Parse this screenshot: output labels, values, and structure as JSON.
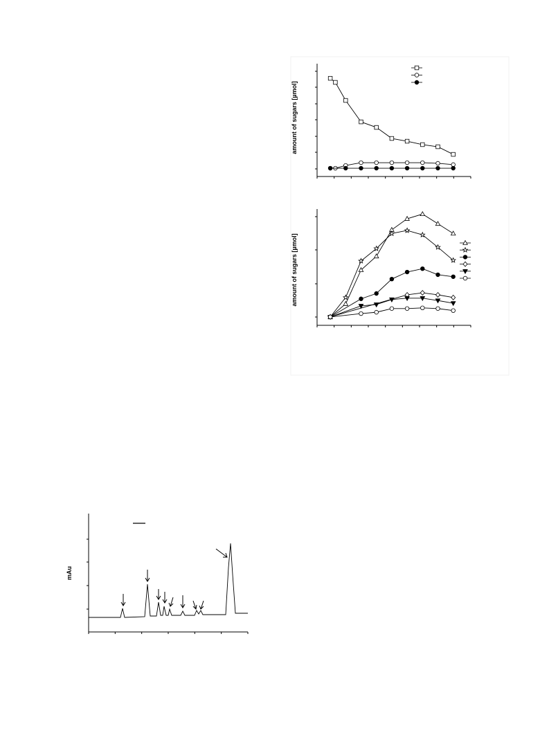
{
  "chart_data": [
    {
      "type": "line",
      "y_label": "amount of sugars [µmol]",
      "xlim": [
        -0.86,
        9.14
      ],
      "ylim": [
        -0.47,
        6.47
      ],
      "legend": "top-right",
      "series": [
        {
          "marker": "square",
          "color": "#000000",
          "x": [
            0,
            0.33,
            1,
            2,
            3,
            4,
            5,
            6,
            7,
            8
          ],
          "values": [
            5.57,
            5.32,
            4.21,
            2.89,
            2.55,
            1.87,
            1.7,
            1.49,
            1.36,
            0.89
          ]
        },
        {
          "marker": "circle",
          "color": "#000000",
          "x": [
            0,
            0.33,
            1,
            2,
            3,
            4,
            5,
            6,
            7,
            8
          ],
          "values": [
            0.04,
            0.04,
            0.21,
            0.38,
            0.38,
            0.38,
            0.38,
            0.38,
            0.34,
            0.26
          ]
        },
        {
          "marker": "circle-filled",
          "color": "#000000",
          "x": [
            0,
            1,
            2,
            3,
            4,
            5,
            6,
            7,
            8
          ],
          "values": [
            0.04,
            0.04,
            0.04,
            0.04,
            0.04,
            0.04,
            0.04,
            0.04,
            0.04
          ]
        }
      ]
    },
    {
      "type": "line",
      "y_label": "amount of sugars [µmol]",
      "xlim": [
        -0.86,
        9.14
      ],
      "ylim": [
        -0.25,
        3.22
      ],
      "legend": "right",
      "series": [
        {
          "marker": "triangle",
          "color": "#000000",
          "x": [
            0,
            1,
            2,
            3,
            4,
            5,
            6,
            7,
            8
          ],
          "values": [
            0,
            0.39,
            1.4,
            1.81,
            2.6,
            2.93,
            3.07,
            2.78,
            2.49
          ]
        },
        {
          "marker": "star",
          "color": "#000000",
          "x": [
            0,
            1,
            2,
            3,
            4,
            5,
            6,
            7,
            8
          ],
          "values": [
            0,
            0.58,
            1.67,
            2.04,
            2.49,
            2.58,
            2.45,
            2.08,
            1.69
          ]
        },
        {
          "marker": "circle-filled",
          "color": "#000000",
          "x": [
            0,
            2,
            3,
            4,
            5,
            6,
            7,
            8
          ],
          "values": [
            0,
            0.54,
            0.7,
            1.13,
            1.34,
            1.44,
            1.26,
            1.2
          ]
        },
        {
          "marker": "diamond",
          "color": "#000000",
          "x": [
            0,
            5,
            6,
            7,
            8
          ],
          "values": [
            0,
            0.66,
            0.72,
            0.66,
            0.58
          ]
        },
        {
          "marker": "triangle-down-filled",
          "color": "#000000",
          "x": [
            0,
            2,
            3,
            4,
            5,
            6,
            7,
            8
          ],
          "values": [
            0,
            0.33,
            0.37,
            0.52,
            0.56,
            0.56,
            0.49,
            0.41
          ]
        },
        {
          "marker": "circle",
          "color": "#000000",
          "x": [
            0,
            2,
            3,
            4,
            5,
            6,
            7,
            8
          ],
          "values": [
            0,
            0.1,
            0.14,
            0.25,
            0.25,
            0.27,
            0.25,
            0.19
          ]
        }
      ]
    },
    {
      "type": "line",
      "y_label": "mAu",
      "xlim": [
        0,
        23
      ],
      "ylim": [
        0,
        17.1
      ],
      "series": [
        {
          "marker": "none",
          "color": "#000000",
          "x": [
            0,
            4.6,
            4.9,
            5.2,
            8.1,
            8.5,
            8.9,
            9.8,
            10.1,
            10.4,
            10.7,
            10.9,
            11.2,
            11.5,
            11.7,
            12,
            13.3,
            13.6,
            13.9,
            15.3,
            15.6,
            15.9,
            16.2,
            16.5,
            19.8,
            20.2,
            20.5,
            20.8,
            21.2,
            23
          ],
          "values": [
            2.1,
            2.1,
            3.4,
            2.1,
            2.2,
            6.9,
            2.3,
            2.3,
            4.3,
            2.4,
            2.4,
            3.7,
            2.4,
            2.4,
            3.3,
            2.4,
            2.4,
            3.0,
            2.4,
            2.4,
            3.1,
            2.6,
            3.1,
            2.5,
            2.5,
            9.3,
            12.8,
            8.3,
            2.7,
            2.7
          ]
        }
      ]
    }
  ]
}
